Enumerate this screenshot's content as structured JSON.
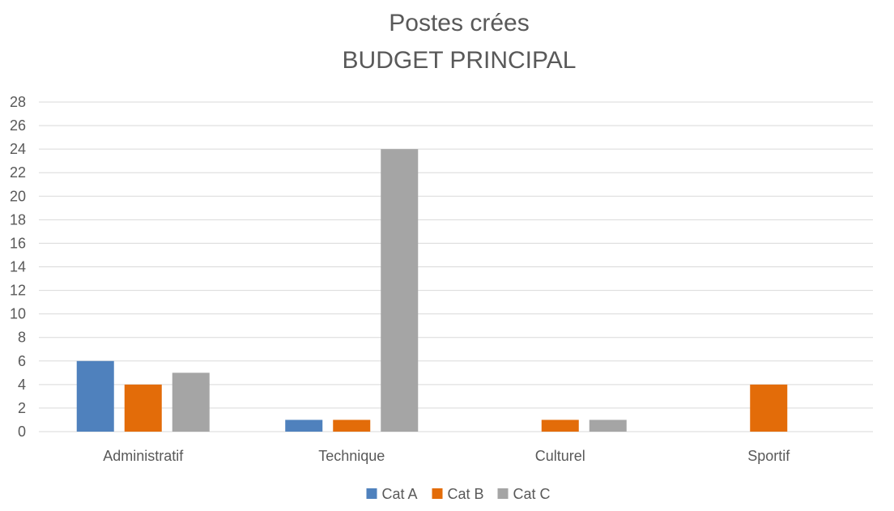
{
  "chart_data": {
    "type": "bar",
    "title": "Postes crées",
    "subtitle": "BUDGET PRINCIPAL",
    "xlabel": "",
    "ylabel": "",
    "categories": [
      "Administratif",
      "Technique",
      "Culturel",
      "Sportif"
    ],
    "series": [
      {
        "name": "Cat A",
        "color": "#4f81bd",
        "values": [
          6,
          1,
          0,
          0
        ]
      },
      {
        "name": "Cat B",
        "color": "#e36c09",
        "values": [
          4,
          1,
          1,
          4
        ]
      },
      {
        "name": "Cat C",
        "color": "#a5a5a5",
        "values": [
          5,
          24,
          1,
          0
        ]
      }
    ],
    "ylim": [
      0,
      28
    ],
    "yticks": [
      "0",
      "2",
      "4",
      "6",
      "8",
      "10",
      "12",
      "14",
      "16",
      "18",
      "20",
      "22",
      "24",
      "26",
      "28"
    ],
    "grid": true,
    "gridColor": "#d9d9d9",
    "legendPosition": "bottom"
  }
}
